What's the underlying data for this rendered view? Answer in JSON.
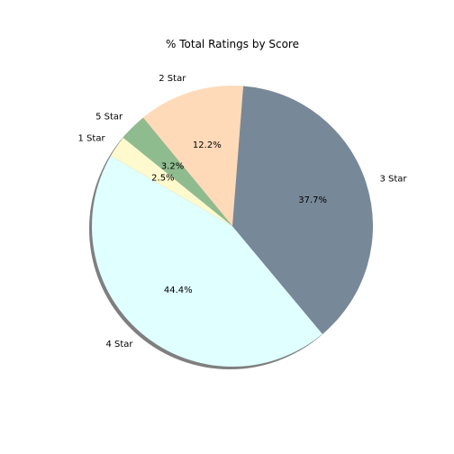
{
  "chart_data": {
    "type": "pie",
    "title": "% Total Ratings by Score",
    "shadow": true,
    "start_angle_deg": 150,
    "direction": "counterclockwise",
    "slices": [
      {
        "label": "4 Star",
        "value": 44.4,
        "pct_label": "44.4%",
        "color": "#E0FFFF"
      },
      {
        "label": "3 Star",
        "value": 37.7,
        "pct_label": "37.7%",
        "color": "#778899"
      },
      {
        "label": "2 Star",
        "value": 12.2,
        "pct_label": "12.2%",
        "color": "#FFDAB9"
      },
      {
        "label": "5 Star",
        "value": 3.2,
        "pct_label": "3.2%",
        "color": "#8FBC8F"
      },
      {
        "label": "1 Star",
        "value": 2.5,
        "pct_label": "2.5%",
        "color": "#FFFACD"
      }
    ]
  }
}
